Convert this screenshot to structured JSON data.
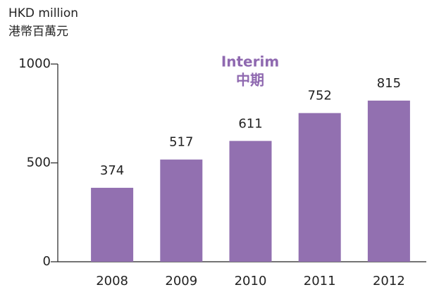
{
  "chart_data": {
    "type": "bar",
    "y_label": [
      "HKD million",
      "港幣百萬元"
    ],
    "annotation": [
      "Interim",
      "中期"
    ],
    "categories": [
      "2008",
      "2009",
      "2010",
      "2011",
      "2012"
    ],
    "values": [
      374,
      517,
      611,
      752,
      815
    ],
    "color": "#9270b0",
    "ylim": [
      0,
      1000
    ],
    "yticks": [
      0,
      500,
      1000
    ],
    "grid": false
  }
}
